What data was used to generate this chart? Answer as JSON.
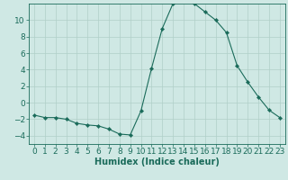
{
  "x": [
    0,
    1,
    2,
    3,
    4,
    5,
    6,
    7,
    8,
    9,
    10,
    11,
    12,
    13,
    14,
    15,
    16,
    17,
    18,
    19,
    20,
    21,
    22,
    23
  ],
  "y": [
    -1.5,
    -1.8,
    -1.8,
    -2.0,
    -2.5,
    -2.7,
    -2.8,
    -3.2,
    -3.8,
    -3.9,
    -1.0,
    4.2,
    9.0,
    12.0,
    12.5,
    12.0,
    11.0,
    10.0,
    8.5,
    4.5,
    2.5,
    0.7,
    -0.9,
    -1.8
  ],
  "line_color": "#1a6b5a",
  "marker": "D",
  "marker_size": 2.2,
  "bg_color": "#cfe8e4",
  "grid_color": "#b0cfc8",
  "axis_color": "#1a6b5a",
  "xlabel": "Humidex (Indice chaleur)",
  "ylim": [
    -5,
    12
  ],
  "xlim": [
    -0.5,
    23.5
  ],
  "yticks": [
    -4,
    -2,
    0,
    2,
    4,
    6,
    8,
    10
  ],
  "xticks": [
    0,
    1,
    2,
    3,
    4,
    5,
    6,
    7,
    8,
    9,
    10,
    11,
    12,
    13,
    14,
    15,
    16,
    17,
    18,
    19,
    20,
    21,
    22,
    23
  ],
  "xlabel_fontsize": 7,
  "tick_fontsize": 6.5,
  "linewidth": 0.8
}
